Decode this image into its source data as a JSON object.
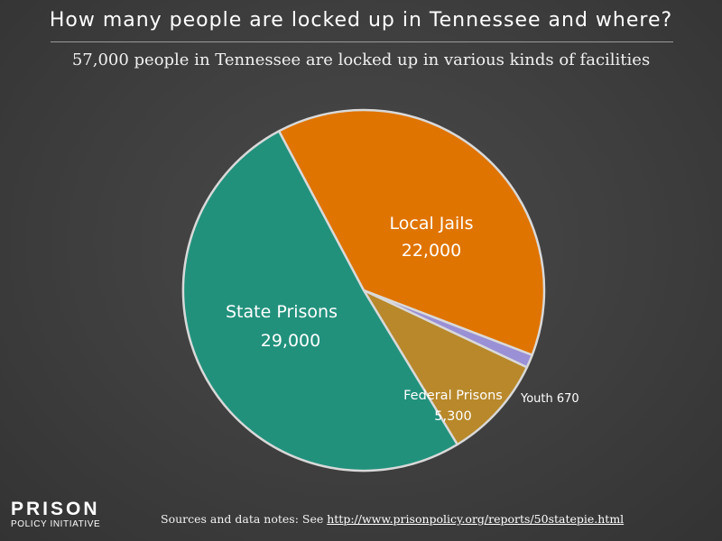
{
  "chart_data": {
    "type": "pie",
    "title": "How many people are locked up in Tennessee and where?",
    "subtitle": "57,000 people in Tennessee are locked up in various kinds of facilities",
    "slices": [
      {
        "label": "Local Jails",
        "value": 22000,
        "value_label": "22,000",
        "color": "#e07400"
      },
      {
        "label": "Youth",
        "value": 670,
        "value_label": "670",
        "color": "#9a90d6"
      },
      {
        "label": "Federal Prisons",
        "value": 5300,
        "value_label": "5,300",
        "color": "#b8882a"
      },
      {
        "label": "State Prisons",
        "value": 29000,
        "value_label": "29,000",
        "color": "#21917c"
      }
    ]
  },
  "logo": {
    "top": "PRISON",
    "bottom": "POLICY INITIATIVE"
  },
  "footer": {
    "sources_text": "Sources and data notes: See",
    "link_text": "http://www.prisonpolicy.org/reports/50statepie.html"
  }
}
